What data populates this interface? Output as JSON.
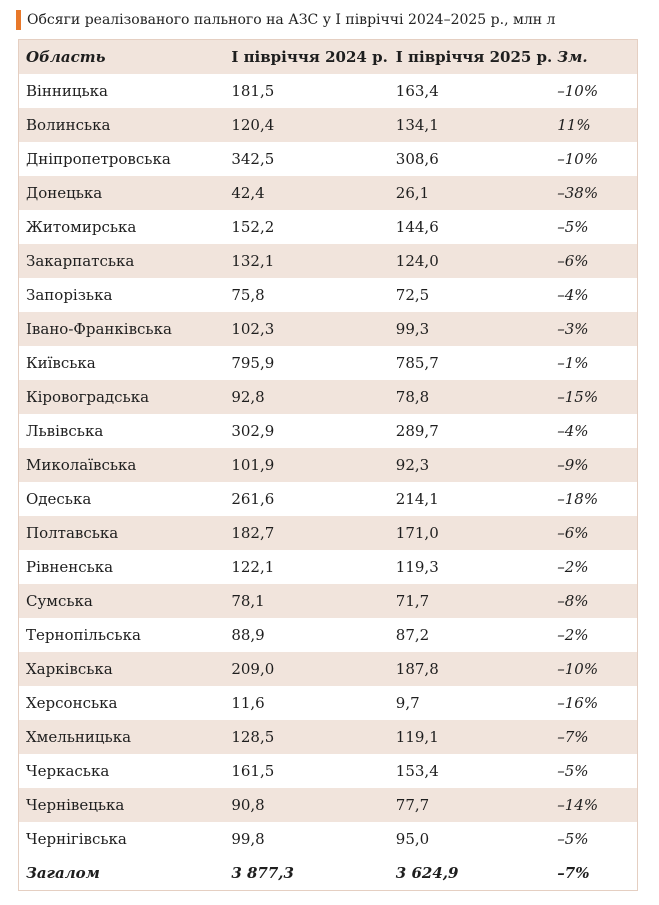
{
  "title": "Обсяги реалізованого пального на АЗС у І півріччі 2024–2025 р., млн л",
  "accent_color": "#e8782a",
  "stripe_color": "#f1e4dc",
  "headers": [
    "Область",
    "І півріччя 2024 р.",
    "І півріччя 2025 р.",
    "Зм."
  ],
  "rows": [
    [
      "Вінницька",
      "181,5",
      "163,4",
      "–10%"
    ],
    [
      "Волинська",
      "120,4",
      "134,1",
      "11%"
    ],
    [
      "Дніпропетровська",
      "342,5",
      "308,6",
      "–10%"
    ],
    [
      "Донецька",
      "42,4",
      "26,1",
      "–38%"
    ],
    [
      "Житомирська",
      "152,2",
      "144,6",
      "–5%"
    ],
    [
      "Закарпатська",
      "132,1",
      "124,0",
      "–6%"
    ],
    [
      "Запорізька",
      "75,8",
      "72,5",
      "–4%"
    ],
    [
      "Івано-Франківська",
      "102,3",
      "99,3",
      "–3%"
    ],
    [
      "Київська",
      "795,9",
      "785,7",
      "–1%"
    ],
    [
      "Кіровоградська",
      "92,8",
      "78,8",
      "–15%"
    ],
    [
      "Львівська",
      "302,9",
      "289,7",
      "–4%"
    ],
    [
      "Миколаївська",
      "101,9",
      "92,3",
      "–9%"
    ],
    [
      "Одеська",
      "261,6",
      "214,1",
      "–18%"
    ],
    [
      "Полтавська",
      "182,7",
      "171,0",
      "–6%"
    ],
    [
      "Рівненська",
      "122,1",
      "119,3",
      "–2%"
    ],
    [
      "Сумська",
      "78,1",
      "71,7",
      "–8%"
    ],
    [
      "Тернопільська",
      "88,9",
      "87,2",
      "–2%"
    ],
    [
      "Харківська",
      "209,0",
      "187,8",
      "–10%"
    ],
    [
      "Херсонська",
      "11,6",
      "9,7",
      "–16%"
    ],
    [
      "Хмельницька",
      "128,5",
      "119,1",
      "–7%"
    ],
    [
      "Черкаська",
      "161,5",
      "153,4",
      "–5%"
    ],
    [
      "Чернівецька",
      "90,8",
      "77,7",
      "–14%"
    ],
    [
      "Чернігівська",
      "99,8",
      "95,0",
      "–5%"
    ]
  ],
  "total": [
    "Загалом",
    "3 877,3",
    "3 624,9",
    "–7%"
  ]
}
